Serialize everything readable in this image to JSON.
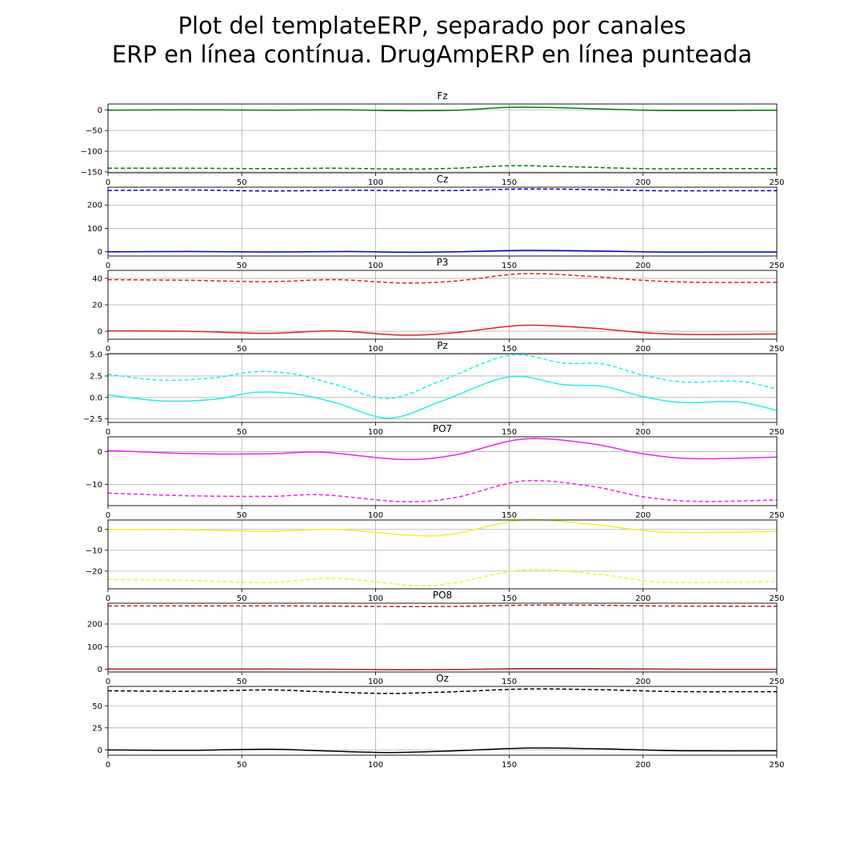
{
  "figure": {
    "title_line1": "Plot del templateERP, separado por canales",
    "title_line2": "ERP en línea contínua. DrugAmpERP en línea punteada"
  },
  "chart_data": [
    {
      "type": "line",
      "title": "Fz",
      "color": "#008000",
      "xlim": [
        0,
        250
      ],
      "xticks": [
        0,
        50,
        100,
        150,
        200,
        250
      ],
      "ylim": [
        -152,
        14
      ],
      "yticks": [
        0,
        -50,
        -100,
        -150
      ],
      "ytick_labels": [
        "0",
        "−50",
        "−100",
        "−150"
      ],
      "grid": true,
      "series": [
        {
          "style": "solid",
          "x": [
            0,
            30,
            60,
            85,
            110,
            130,
            150,
            170,
            200,
            220,
            250
          ],
          "y": [
            -1,
            0,
            -1,
            0,
            -2,
            -1,
            6,
            5,
            -1,
            -2,
            -1
          ]
        },
        {
          "style": "dashed",
          "x": [
            0,
            30,
            60,
            85,
            110,
            130,
            150,
            170,
            200,
            220,
            250
          ],
          "y": [
            -141,
            -141,
            -142,
            -141,
            -143,
            -141,
            -135,
            -137,
            -142,
            -142,
            -142
          ]
        }
      ]
    },
    {
      "type": "line",
      "title": "Cz",
      "color": "#0000cc",
      "xlim": [
        0,
        250
      ],
      "xticks": [
        0,
        50,
        100,
        150,
        200,
        250
      ],
      "ylim": [
        -18,
        276
      ],
      "yticks": [
        0,
        100,
        200
      ],
      "ytick_labels": [
        "0",
        "100",
        "200"
      ],
      "grid": true,
      "series": [
        {
          "style": "solid",
          "x": [
            0,
            30,
            60,
            90,
            110,
            130,
            155,
            180,
            205,
            230,
            250
          ],
          "y": [
            0,
            1,
            -1,
            1,
            -2,
            0,
            6,
            4,
            -1,
            -1,
            -1
          ]
        },
        {
          "style": "dashed",
          "x": [
            0,
            30,
            60,
            90,
            110,
            130,
            155,
            180,
            205,
            230,
            250
          ],
          "y": [
            262,
            264,
            260,
            263,
            261,
            262,
            268,
            266,
            261,
            261,
            261
          ]
        }
      ]
    },
    {
      "type": "line",
      "title": "P3",
      "color": "#dd2222",
      "xlim": [
        0,
        250
      ],
      "xticks": [
        0,
        50,
        100,
        150,
        200,
        250
      ],
      "ylim": [
        -6,
        46
      ],
      "yticks": [
        0,
        20,
        40
      ],
      "ytick_labels": [
        "0",
        "20",
        "40"
      ],
      "grid": true,
      "series": [
        {
          "style": "solid",
          "x": [
            0,
            30,
            60,
            85,
            110,
            130,
            155,
            180,
            200,
            220,
            250
          ],
          "y": [
            0.3,
            0,
            -1.5,
            0.3,
            -3,
            -1,
            4.5,
            2.5,
            -1,
            -2.5,
            -2
          ]
        },
        {
          "style": "dashed",
          "x": [
            0,
            30,
            60,
            85,
            110,
            130,
            155,
            180,
            200,
            220,
            250
          ],
          "y": [
            39,
            38.5,
            37.5,
            39,
            36.5,
            38,
            43.5,
            41.5,
            38.5,
            37,
            37
          ]
        }
      ]
    },
    {
      "type": "line",
      "title": "Pz",
      "color": "#22eeee",
      "xlim": [
        0,
        250
      ],
      "xticks": [
        0,
        50,
        100,
        150,
        200,
        250
      ],
      "ylim": [
        -2.9,
        5.1
      ],
      "yticks": [
        5.0,
        2.5,
        0.0,
        -2.5
      ],
      "ytick_labels": [
        "5.0",
        "2.5",
        "0.0",
        "−2.5"
      ],
      "grid": true,
      "series": [
        {
          "style": "solid",
          "x": [
            0,
            20,
            40,
            55,
            70,
            85,
            105,
            125,
            150,
            170,
            185,
            200,
            215,
            235,
            250
          ],
          "y": [
            0.3,
            -0.4,
            -0.2,
            0.6,
            0.4,
            -0.6,
            -2.4,
            -0.4,
            2.4,
            1.5,
            1.3,
            0.1,
            -0.6,
            -0.5,
            -1.5
          ]
        },
        {
          "style": "dashed",
          "x": [
            0,
            20,
            40,
            55,
            70,
            85,
            105,
            125,
            150,
            170,
            185,
            200,
            215,
            235,
            250
          ],
          "y": [
            2.7,
            2.0,
            2.3,
            3.0,
            2.7,
            1.5,
            -0.1,
            2.0,
            4.9,
            4.0,
            3.9,
            2.6,
            1.8,
            1.9,
            1.0
          ]
        }
      ]
    },
    {
      "type": "line",
      "title": "PO7",
      "color": "#ee22ee",
      "xlim": [
        0,
        250
      ],
      "xticks": [
        0,
        50,
        100,
        150,
        200,
        250
      ],
      "ylim": [
        -16.5,
        4.5
      ],
      "yticks": [
        0,
        -10
      ],
      "ytick_labels": [
        "0",
        "−10"
      ],
      "grid": true,
      "series": [
        {
          "style": "solid",
          "x": [
            0,
            30,
            60,
            80,
            110,
            130,
            155,
            180,
            200,
            220,
            250
          ],
          "y": [
            0.3,
            -0.6,
            -0.7,
            -0.2,
            -2.4,
            -1,
            3.8,
            2.5,
            -0.7,
            -2.2,
            -1.7
          ]
        },
        {
          "style": "dashed",
          "x": [
            0,
            30,
            60,
            80,
            110,
            130,
            155,
            180,
            200,
            220,
            250
          ],
          "y": [
            -12.7,
            -13.5,
            -13.7,
            -13.2,
            -15.3,
            -14,
            -9,
            -10.5,
            -13.8,
            -15.2,
            -14.8
          ]
        }
      ]
    },
    {
      "type": "line",
      "title": "",
      "color": "#f5f033",
      "xlim": [
        0,
        250
      ],
      "xticks": [
        0,
        50,
        100,
        150,
        200,
        250
      ],
      "ylim": [
        -28.5,
        4.5
      ],
      "yticks": [
        0,
        -10,
        -20
      ],
      "ytick_labels": [
        "0",
        "−10",
        "−20"
      ],
      "grid": true,
      "series": [
        {
          "style": "solid",
          "x": [
            0,
            30,
            60,
            85,
            115,
            130,
            155,
            180,
            200,
            215,
            250
          ],
          "y": [
            0,
            -0.2,
            -1,
            0,
            -3,
            -2,
            4.5,
            2.5,
            -0.5,
            -1.5,
            -1
          ]
        },
        {
          "style": "dashed",
          "x": [
            0,
            30,
            60,
            85,
            115,
            130,
            155,
            180,
            200,
            215,
            250
          ],
          "y": [
            -24,
            -24.5,
            -25.5,
            -23.5,
            -27,
            -25.5,
            -19.5,
            -21,
            -24.5,
            -25.5,
            -25
          ]
        }
      ]
    },
    {
      "type": "line",
      "title": "PO8",
      "color": "#b22222",
      "xlim": [
        0,
        250
      ],
      "xticks": [
        0,
        50,
        100,
        150,
        200,
        250
      ],
      "ylim": [
        -12,
        292
      ],
      "yticks": [
        0,
        100,
        200
      ],
      "ytick_labels": [
        "0",
        "100",
        "200"
      ],
      "grid": true,
      "series": [
        {
          "style": "solid",
          "x": [
            0,
            30,
            60,
            85,
            110,
            130,
            155,
            180,
            205,
            230,
            250
          ],
          "y": [
            1,
            1,
            1,
            0,
            -2,
            -1,
            3,
            3,
            1,
            0,
            0
          ]
        },
        {
          "style": "dashed",
          "x": [
            0,
            30,
            60,
            85,
            110,
            130,
            155,
            180,
            205,
            230,
            250
          ],
          "y": [
            280,
            280,
            280,
            279,
            277,
            278,
            283,
            283,
            280,
            279,
            279
          ]
        }
      ]
    },
    {
      "type": "line",
      "title": "Oz",
      "color": "#000000",
      "xlim": [
        0,
        250
      ],
      "xticks": [
        0,
        50,
        100,
        150,
        200,
        250
      ],
      "ylim": [
        -6,
        72
      ],
      "yticks": [
        0,
        25,
        50
      ],
      "ytick_labels": [
        "0",
        "25",
        "50"
      ],
      "grid": true,
      "series": [
        {
          "style": "solid",
          "x": [
            0,
            30,
            60,
            80,
            105,
            130,
            155,
            180,
            200,
            215,
            250
          ],
          "y": [
            0,
            -0.5,
            0.8,
            -1,
            -3,
            -1,
            2,
            1.5,
            0,
            -1,
            -1
          ]
        },
        {
          "style": "dashed",
          "x": [
            0,
            30,
            60,
            80,
            105,
            130,
            155,
            180,
            200,
            215,
            250
          ],
          "y": [
            67,
            66.5,
            68,
            66,
            64,
            66,
            69,
            68.5,
            67,
            66,
            66
          ]
        }
      ]
    }
  ]
}
